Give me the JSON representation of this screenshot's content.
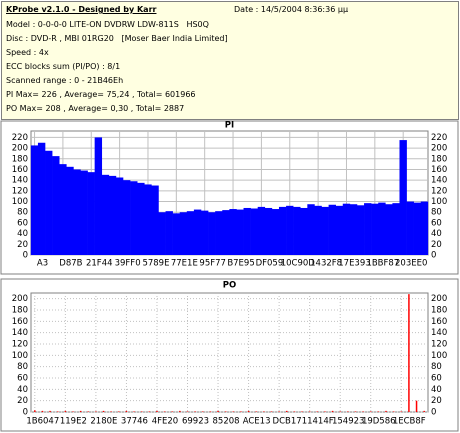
{
  "header": {
    "title": "KProbe v2.1.0 - Designed by Karr",
    "date": "Date : 14/5/2004 8:36:36 μμ",
    "lines": [
      "Model : 0-0-0-0 LITE-ON DVDRW LDW-811S   HS0Q",
      "Disc : DVD-R , MBI 01RG20   [Moser Baer India Limited]",
      "Speed : 4x",
      "ECC blocks sum (PI/PO) : 8/1",
      "Scanned range : 0 - 21B46Eh",
      "PI Max= 226 , Average= 75,24 , Total= 601966",
      "PO Max= 208 , Average= 0,30 , Total= 2887"
    ]
  },
  "chart_data": [
    {
      "type": "bar",
      "title": "PI",
      "color": "#0000ff",
      "grid": true,
      "categories": [
        "A3",
        null,
        null,
        null,
        "D87B",
        null,
        null,
        null,
        "21F44",
        null,
        null,
        null,
        "39FF0",
        null,
        null,
        null,
        "5789E",
        null,
        null,
        null,
        "77E1E",
        null,
        null,
        null,
        "95F77",
        null,
        null,
        null,
        "B7E95",
        null,
        null,
        null,
        "DF059",
        null,
        null,
        null,
        "10C90D",
        null,
        null,
        null,
        "1432F8",
        null,
        null,
        null,
        "17E393",
        null,
        null,
        null,
        "1BBF87",
        null,
        null,
        null,
        "203EE0",
        null,
        null,
        null
      ],
      "values": [
        205,
        210,
        195,
        185,
        170,
        165,
        160,
        158,
        155,
        220,
        150,
        148,
        145,
        140,
        138,
        135,
        132,
        130,
        80,
        82,
        78,
        80,
        82,
        85,
        83,
        80,
        82,
        84,
        86,
        85,
        88,
        87,
        90,
        88,
        86,
        90,
        92,
        90,
        88,
        95,
        92,
        90,
        94,
        92,
        96,
        95,
        93,
        97,
        96,
        98,
        95,
        97,
        215,
        100,
        98,
        100
      ],
      "ylim": [
        0,
        232
      ],
      "yticks": [
        0,
        20,
        40,
        60,
        80,
        100,
        120,
        140,
        160,
        180,
        200,
        220
      ]
    },
    {
      "type": "bar",
      "title": "PO",
      "color": "#ff0000",
      "grid": true,
      "categories": [
        "1B6047",
        null,
        null,
        null,
        "119E2",
        null,
        null,
        null,
        "2180E",
        null,
        null,
        null,
        "37746",
        null,
        null,
        null,
        "4FE20",
        null,
        null,
        null,
        "69923",
        null,
        null,
        null,
        "85208",
        null,
        null,
        null,
        "ACE13",
        null,
        null,
        null,
        "DCB17",
        null,
        null,
        null,
        "11414F",
        null,
        null,
        null,
        "154923",
        null,
        null,
        null,
        "19D586",
        null,
        null,
        null,
        "1ECB8F",
        null,
        null,
        null
      ],
      "values": [
        3,
        2,
        2,
        1,
        2,
        1,
        2,
        1,
        1,
        2,
        1,
        1,
        2,
        1,
        1,
        1,
        2,
        1,
        1,
        2,
        1,
        1,
        1,
        1,
        2,
        1,
        1,
        1,
        2,
        1,
        1,
        1,
        1,
        2,
        1,
        1,
        1,
        1,
        1,
        2,
        1,
        1,
        1,
        1,
        1,
        1,
        2,
        1,
        1,
        208,
        20,
        2
      ],
      "ylim": [
        0,
        210
      ],
      "yticks": [
        0,
        20,
        40,
        60,
        80,
        100,
        120,
        140,
        160,
        180,
        200
      ]
    }
  ]
}
